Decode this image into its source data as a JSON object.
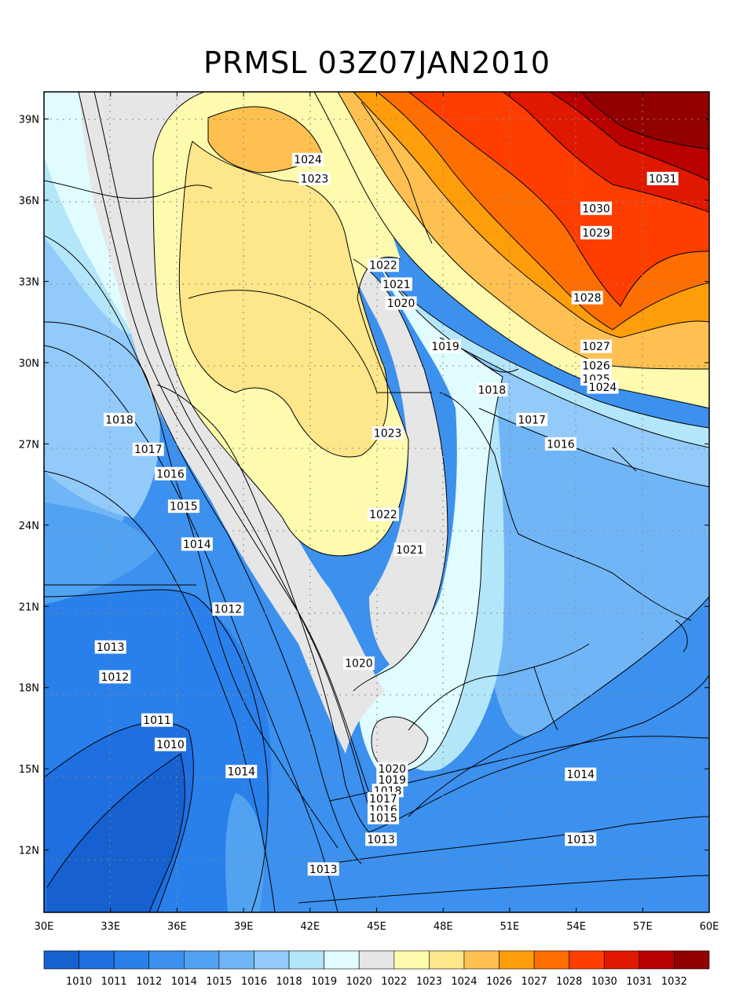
{
  "title": "PRMSL 03Z07JAN2010",
  "map": {
    "lon_range": [
      30,
      60
    ],
    "lat_range": [
      9.7,
      40
    ],
    "lon_ticks": [
      "30E",
      "33E",
      "36E",
      "39E",
      "42E",
      "45E",
      "48E",
      "51E",
      "54E",
      "57E",
      "60E"
    ],
    "lat_ticks": [
      "12N",
      "15N",
      "18N",
      "21N",
      "24N",
      "27N",
      "30N",
      "33N",
      "36N",
      "39N"
    ]
  },
  "contour_labels": [
    {
      "text": "1024",
      "lon": 41.9,
      "lat": 37.5
    },
    {
      "text": "1023",
      "lon": 42.2,
      "lat": 36.8
    },
    {
      "text": "1031",
      "lon": 57.9,
      "lat": 36.8
    },
    {
      "text": "1030",
      "lon": 54.9,
      "lat": 35.7
    },
    {
      "text": "1029",
      "lon": 54.9,
      "lat": 34.8
    },
    {
      "text": "1022",
      "lon": 45.3,
      "lat": 33.6
    },
    {
      "text": "1021",
      "lon": 45.9,
      "lat": 32.9
    },
    {
      "text": "1020",
      "lon": 46.1,
      "lat": 32.2
    },
    {
      "text": "1028",
      "lon": 54.5,
      "lat": 32.4
    },
    {
      "text": "1019",
      "lon": 48.1,
      "lat": 30.6
    },
    {
      "text": "1027",
      "lon": 54.9,
      "lat": 30.6
    },
    {
      "text": "1026",
      "lon": 54.9,
      "lat": 29.9
    },
    {
      "text": "1025",
      "lon": 54.9,
      "lat": 29.4
    },
    {
      "text": "1024",
      "lon": 55.2,
      "lat": 29.1
    },
    {
      "text": "1018",
      "lon": 50.2,
      "lat": 29.0
    },
    {
      "text": "1023",
      "lon": 45.5,
      "lat": 27.4
    },
    {
      "text": "1018",
      "lon": 33.4,
      "lat": 27.9
    },
    {
      "text": "1017",
      "lon": 52.0,
      "lat": 27.9
    },
    {
      "text": "1017",
      "lon": 34.7,
      "lat": 26.8
    },
    {
      "text": "1016",
      "lon": 53.3,
      "lat": 27.0
    },
    {
      "text": "1016",
      "lon": 35.7,
      "lat": 25.9
    },
    {
      "text": "1015",
      "lon": 36.3,
      "lat": 24.7
    },
    {
      "text": "1022",
      "lon": 45.3,
      "lat": 24.4
    },
    {
      "text": "1014",
      "lon": 36.9,
      "lat": 23.3
    },
    {
      "text": "1021",
      "lon": 46.5,
      "lat": 23.1
    },
    {
      "text": "1012",
      "lon": 38.3,
      "lat": 20.9
    },
    {
      "text": "1013",
      "lon": 33.0,
      "lat": 19.5
    },
    {
      "text": "1020",
      "lon": 44.2,
      "lat": 18.9
    },
    {
      "text": "1012",
      "lon": 33.2,
      "lat": 18.4
    },
    {
      "text": "1011",
      "lon": 35.1,
      "lat": 16.8
    },
    {
      "text": "1010",
      "lon": 35.7,
      "lat": 15.9
    },
    {
      "text": "1014",
      "lon": 38.9,
      "lat": 14.9
    },
    {
      "text": "1020",
      "lon": 45.7,
      "lat": 15.0
    },
    {
      "text": "1019",
      "lon": 45.7,
      "lat": 14.6
    },
    {
      "text": "1018",
      "lon": 45.5,
      "lat": 14.2
    },
    {
      "text": "1017",
      "lon": 45.3,
      "lat": 13.9
    },
    {
      "text": "1016",
      "lon": 45.3,
      "lat": 13.5
    },
    {
      "text": "1015",
      "lon": 45.3,
      "lat": 13.2
    },
    {
      "text": "1014",
      "lon": 54.2,
      "lat": 14.8
    },
    {
      "text": "1013",
      "lon": 45.2,
      "lat": 12.4
    },
    {
      "text": "1013",
      "lon": 54.2,
      "lat": 12.4
    },
    {
      "text": "1013",
      "lon": 42.6,
      "lat": 11.3
    }
  ],
  "colorbar": {
    "colors": [
      "#1660d0",
      "#1f6fe0",
      "#2a80ea",
      "#3c90ee",
      "#52a2f2",
      "#70b6f6",
      "#92cafa",
      "#b4e6fa",
      "#e0fcff",
      "#e6e6e6",
      "#fefaae",
      "#fee68a",
      "#fec050",
      "#fe9e0a",
      "#fe6e00",
      "#fe3e00",
      "#e01800",
      "#b80000",
      "#920000"
    ],
    "labels": [
      "1010",
      "1011",
      "1012",
      "1014",
      "1015",
      "1016",
      "1018",
      "1019",
      "1020",
      "1022",
      "1023",
      "1024",
      "1026",
      "1027",
      "1028",
      "1030",
      "1031",
      "1032"
    ]
  }
}
